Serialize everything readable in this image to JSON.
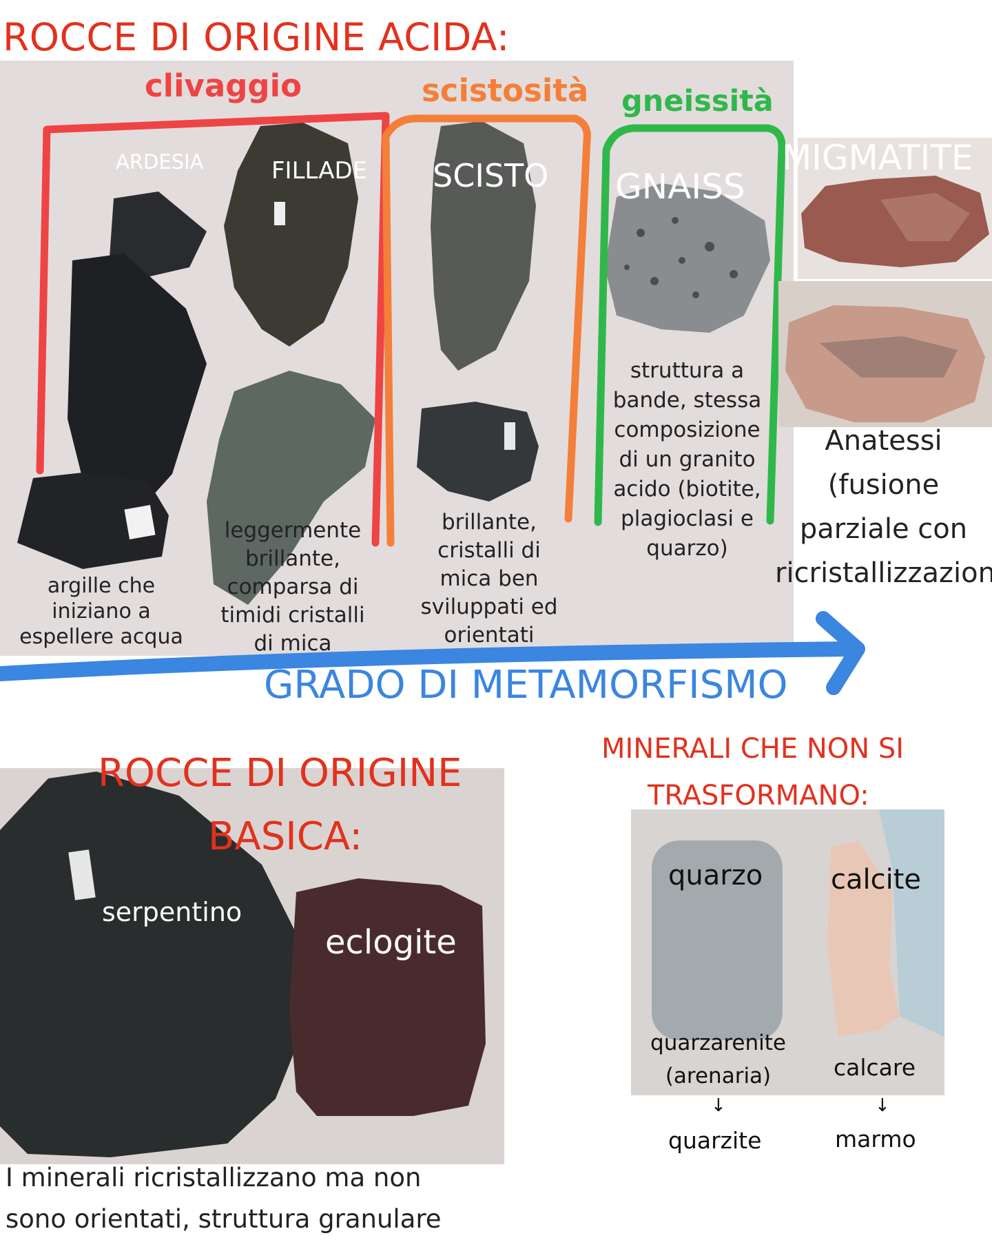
{
  "acid": {
    "title": "ROCCE DI ORIGINE ACIDA:",
    "group_clivaggio": "clivaggio",
    "group_scistosita": "scistosità",
    "group_gneissita": "gneissità",
    "rocks": {
      "ardesia": "ARDESIA",
      "fillade": "FILLADE",
      "scisto": "SCISTO",
      "gnaiss": "GNAISS",
      "migmatite": "MIGMATITE"
    },
    "desc": {
      "ardesia": "argille che iniziano a espellere acqua",
      "fillade": "leggermente brillante, comparsa di timidi cristalli di mica",
      "scisto": "brillante, cristalli di mica ben sviluppati ed orientati",
      "gnaiss": "struttura a bande, stessa composizione di un granito acido (biotite, plagioclasi e quarzo)",
      "migmatite": "Anatessi (fusione parziale con ricristallizzazione)"
    },
    "arrow_label": "GRADO DI METAMORFISMO"
  },
  "basic": {
    "title_line1": "ROCCE DI ORIGINE",
    "title_line2": "BASICA:",
    "serpentino": "serpentino",
    "eclogite": "eclogite",
    "caption": "I minerali ricristallizzano ma non sono orientati, struttura granulare"
  },
  "stable": {
    "title_line1": "MINERALI CHE NON SI",
    "title_line2": "TRASFORMANO:",
    "quarzo": "quarzo",
    "calcite": "calcite",
    "quarzarenite": "quarzarenite (arenaria)",
    "calcare": "calcare",
    "arrow1": "↓",
    "arrow2": "↓",
    "quarzite": "quarzite",
    "marmo": "marmo"
  },
  "colors": {
    "title_red": "#e2311d",
    "clivaggio": "#ef4444",
    "scistosita": "#f47f3a",
    "gneissita": "#2fb84a",
    "arrow_blue": "#3a86e0"
  }
}
